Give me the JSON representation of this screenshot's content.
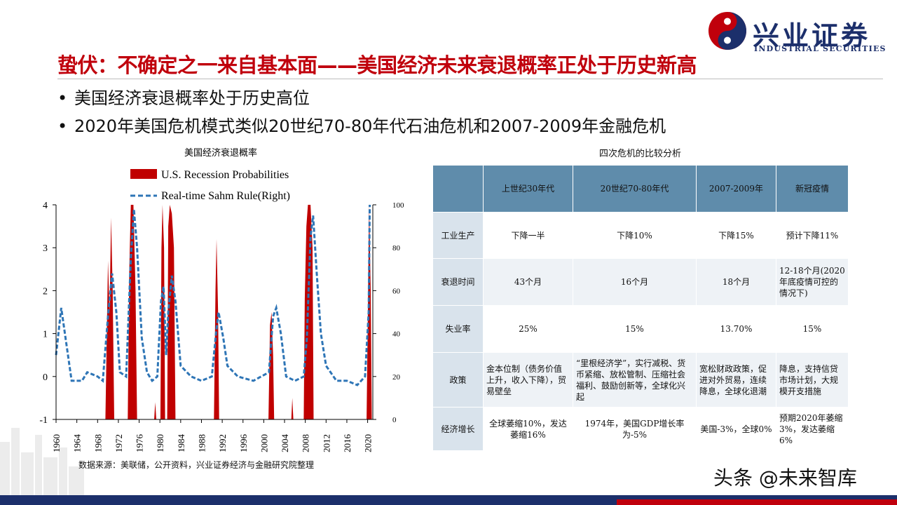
{
  "logo": {
    "cn": "兴业证券",
    "en": "INDUSTRIAL SECURITIES",
    "colors": {
      "navy": "#1c2f6b",
      "red": "#c0000c"
    }
  },
  "title": "蛰伏：不确定之一来自基本面——美国经济未来衰退概率正处于历史新高",
  "bullets": [
    "美国经济衰退概率处于历史高位",
    "2020年美国危机模式类似20世纪70-80年代石油危机和2007-2009年金融危机"
  ],
  "chart_data": {
    "type": "bar+line",
    "title": "美国经济衰退概率",
    "legend": [
      "U.S. Recession Probabilities",
      "Real-time Sahm Rule(Right)"
    ],
    "legend_placement": "top-center",
    "colors": {
      "probability": "#c00000",
      "sahm": "#2e75b6"
    },
    "x_range": [
      1960,
      2021
    ],
    "x_ticks": [
      "1960",
      "1964",
      "1968",
      "1972",
      "1976",
      "1980",
      "1984",
      "1988",
      "1992",
      "1996",
      "2000",
      "2004",
      "2008",
      "2012",
      "2016",
      "2020"
    ],
    "y_left": {
      "range": [
        -1,
        4
      ],
      "ticks": [
        "-1",
        "0",
        "1",
        "2",
        "3",
        "4"
      ]
    },
    "y_right": {
      "range": [
        0,
        100
      ],
      "ticks": [
        "0",
        "20",
        "40",
        "60",
        "80",
        "100"
      ]
    },
    "grid": false,
    "series": [
      {
        "name": "U.S. Recession Probabilities",
        "axis": "left",
        "kind": "area",
        "points": [
          [
            1960,
            -1
          ],
          [
            1969.5,
            -1
          ],
          [
            1969.8,
            1.2
          ],
          [
            1970.0,
            2.7
          ],
          [
            1970.3,
            1.5
          ],
          [
            1970.6,
            3.7
          ],
          [
            1970.9,
            2.0
          ],
          [
            1971.2,
            -1
          ],
          [
            1973.8,
            -1
          ],
          [
            1974.1,
            2.5
          ],
          [
            1974.4,
            4
          ],
          [
            1974.9,
            4
          ],
          [
            1975.3,
            2.0
          ],
          [
            1975.6,
            -1
          ],
          [
            1978.9,
            -1
          ],
          [
            1979.1,
            -0.6
          ],
          [
            1979.3,
            -1
          ],
          [
            1980.1,
            -1
          ],
          [
            1980.3,
            3.0
          ],
          [
            1980.5,
            4
          ],
          [
            1980.8,
            3.0
          ],
          [
            1981.0,
            -1
          ],
          [
            1981.4,
            -1
          ],
          [
            1981.6,
            3.5
          ],
          [
            1981.9,
            4
          ],
          [
            1982.3,
            3.8
          ],
          [
            1982.7,
            3.0
          ],
          [
            1983.0,
            -1
          ],
          [
            1990.4,
            -1
          ],
          [
            1990.7,
            2.0
          ],
          [
            1990.9,
            3.2
          ],
          [
            1991.2,
            1.5
          ],
          [
            1991.4,
            -1
          ],
          [
            2000.9,
            -1
          ],
          [
            2001.2,
            1.2
          ],
          [
            2001.5,
            1.5
          ],
          [
            2001.8,
            0.5
          ],
          [
            2002.0,
            -1
          ],
          [
            2005.3,
            -1
          ],
          [
            2005.5,
            -0.5
          ],
          [
            2005.7,
            -1
          ],
          [
            2007.7,
            -1
          ],
          [
            2007.9,
            1.8
          ],
          [
            2008.2,
            3.5
          ],
          [
            2008.5,
            4
          ],
          [
            2009.0,
            4
          ],
          [
            2009.4,
            3.0
          ],
          [
            2009.6,
            -1
          ],
          [
            2019.8,
            -1
          ],
          [
            2020.1,
            2.0
          ],
          [
            2020.3,
            4
          ],
          [
            2020.6,
            2.0
          ],
          [
            2020.8,
            -1
          ],
          [
            2021,
            -1
          ]
        ]
      },
      {
        "name": "Real-time Sahm Rule(Right)",
        "axis": "right",
        "kind": "line",
        "points": [
          [
            1960,
            30
          ],
          [
            1961,
            52
          ],
          [
            1962,
            35
          ],
          [
            1963,
            18
          ],
          [
            1965,
            18
          ],
          [
            1966,
            22
          ],
          [
            1968,
            20
          ],
          [
            1969,
            18
          ],
          [
            1970,
            48
          ],
          [
            1970.8,
            68
          ],
          [
            1971.6,
            50
          ],
          [
            1972.3,
            22
          ],
          [
            1973.5,
            20
          ],
          [
            1974.4,
            75
          ],
          [
            1975.0,
            98
          ],
          [
            1975.6,
            80
          ],
          [
            1976.5,
            38
          ],
          [
            1977.5,
            22
          ],
          [
            1978.5,
            18
          ],
          [
            1979.5,
            20
          ],
          [
            1980.2,
            55
          ],
          [
            1980.7,
            62
          ],
          [
            1981.2,
            30
          ],
          [
            1981.6,
            50
          ],
          [
            1982.3,
            67
          ],
          [
            1983.0,
            55
          ],
          [
            1984.0,
            25
          ],
          [
            1986,
            20
          ],
          [
            1988,
            18
          ],
          [
            1990,
            20
          ],
          [
            1990.8,
            40
          ],
          [
            1991.3,
            50
          ],
          [
            1992.2,
            38
          ],
          [
            1993,
            25
          ],
          [
            1995,
            20
          ],
          [
            1998,
            18
          ],
          [
            2001,
            22
          ],
          [
            2001.8,
            48
          ],
          [
            2002.4,
            52
          ],
          [
            2003.3,
            40
          ],
          [
            2004.3,
            20
          ],
          [
            2006,
            18
          ],
          [
            2007.7,
            20
          ],
          [
            2008.3,
            38
          ],
          [
            2009.0,
            85
          ],
          [
            2009.5,
            95
          ],
          [
            2010.2,
            68
          ],
          [
            2011.0,
            40
          ],
          [
            2012,
            25
          ],
          [
            2014,
            18
          ],
          [
            2016,
            18
          ],
          [
            2018,
            16
          ],
          [
            2019.5,
            20
          ],
          [
            2020.2,
            50
          ],
          [
            2020.4,
            100
          ]
        ]
      }
    ]
  },
  "source": "数据来源：美联储，公开资料，兴业证券经济与金融研究院整理",
  "table": {
    "caption": "四次危机的比较分析",
    "columns": [
      "",
      "上世纪30年代",
      "20世纪70-80年代",
      "2007-2009年",
      "新冠疫情"
    ],
    "rows": [
      {
        "label": "工业生产",
        "cells": [
          "下降一半",
          "下降10%",
          "下降15%",
          "预计下降11%"
        ]
      },
      {
        "label": "衰退时间",
        "cells": [
          "43个月",
          "16个月",
          "18个月",
          "12-18个月(2020年底疫情可控的情况下)"
        ]
      },
      {
        "label": "失业率",
        "cells": [
          "25%",
          "15%",
          "13.70%",
          "15%"
        ]
      },
      {
        "label": "政策",
        "cells": [
          "金本位制（债务价值上升，收入下降），贸易壁垒",
          "“里根经济学”，实行减税、货币紧缩、放松管制、压缩社会福利、鼓励创新等，全球化兴起",
          "宽松财政政策，促进对外贸易，连续降息，全球化退潮",
          "降息，支持信贷市场计划，大规模开支措施"
        ]
      },
      {
        "label": "经济增长",
        "cells": [
          "全球萎缩10%，发达萎缩16%",
          "1974年，美国GDP增长率为-5%",
          "美国-3%，全球0%",
          "预期2020年萎缩3%，发达萎缩6%"
        ]
      }
    ]
  },
  "watermark": "头条 @未来智库"
}
